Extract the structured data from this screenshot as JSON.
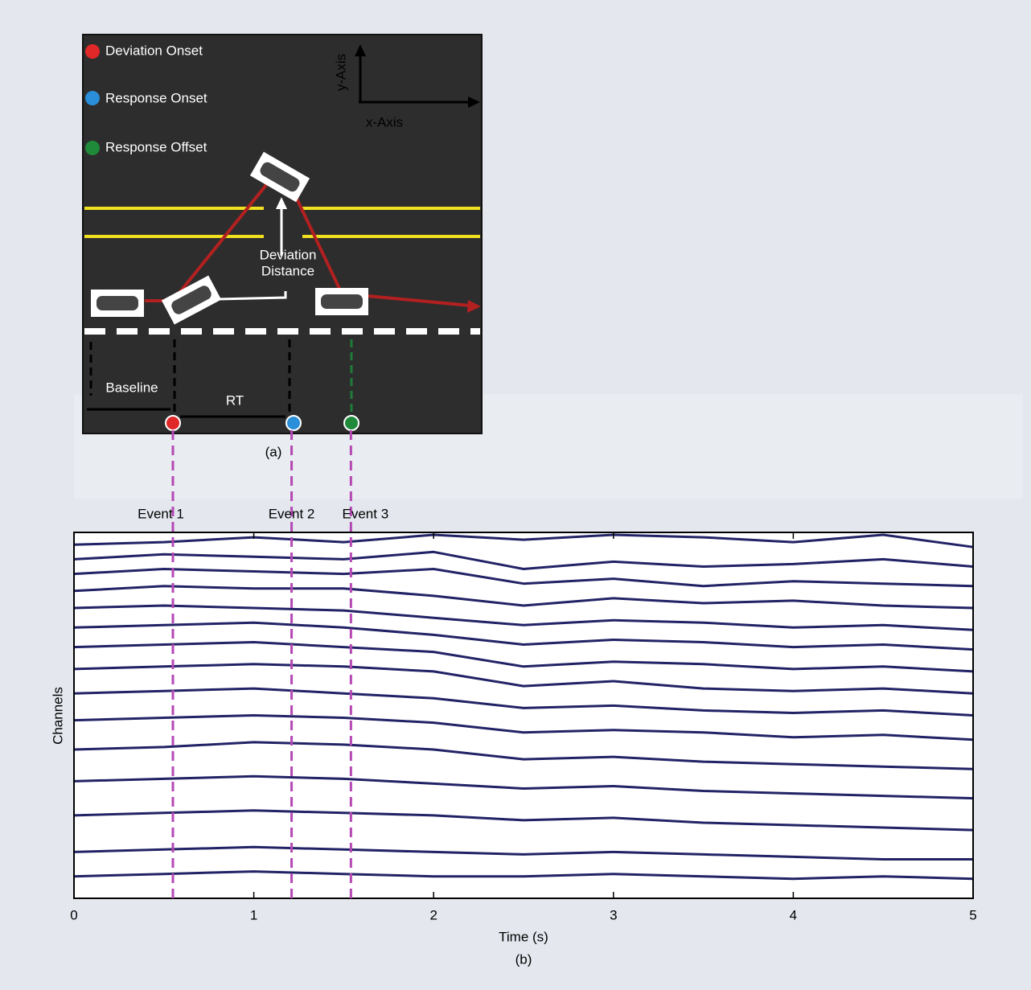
{
  "diagram": {
    "legend": [
      "Deviation Onset",
      "Response Onset",
      "Response Offset"
    ],
    "y_axis_label": "y-Axis",
    "x_axis_label": "x-Axis",
    "deviation_distance": [
      "Deviation",
      "Distance"
    ],
    "baseline": "Baseline",
    "rt": "RT",
    "caption": "(a)"
  },
  "chart_data": {
    "type": "line",
    "xlabel": "Time (s)",
    "ylabel": "Channels",
    "caption": "(b)",
    "xlim": [
      0,
      5
    ],
    "xticks": [
      0,
      1,
      2,
      3,
      4,
      5
    ],
    "ylim": [
      0,
      15
    ],
    "events": [
      {
        "label": "Event 1",
        "x": 0.55
      },
      {
        "label": "Event 2",
        "x": 1.21
      },
      {
        "label": "Event 3",
        "x": 1.54
      }
    ],
    "event_color": "#b548b5",
    "x": [
      0,
      0.5,
      1,
      1.5,
      2,
      2.5,
      3,
      3.5,
      4,
      4.5,
      5
    ],
    "series": [
      {
        "color": "#222266",
        "values": [
          14.5,
          14.6,
          14.8,
          14.6,
          14.9,
          14.7,
          14.9,
          14.8,
          14.6,
          14.9,
          14.4
        ]
      },
      {
        "color": "#222266",
        "values": [
          13.9,
          14.1,
          14.0,
          13.9,
          14.2,
          13.5,
          13.8,
          13.6,
          13.7,
          13.9,
          13.6
        ]
      },
      {
        "color": "#222266",
        "values": [
          13.3,
          13.5,
          13.4,
          13.3,
          13.5,
          12.9,
          13.1,
          12.8,
          13.0,
          12.9,
          12.8
        ]
      },
      {
        "color": "#222266",
        "values": [
          12.6,
          12.8,
          12.7,
          12.7,
          12.4,
          12.0,
          12.3,
          12.1,
          12.2,
          12.0,
          11.9
        ]
      },
      {
        "color": "#222266",
        "values": [
          11.9,
          12.0,
          11.9,
          11.8,
          11.5,
          11.2,
          11.4,
          11.3,
          11.1,
          11.2,
          11.0
        ]
      },
      {
        "color": "#222266",
        "values": [
          11.1,
          11.2,
          11.3,
          11.1,
          10.8,
          10.4,
          10.6,
          10.5,
          10.3,
          10.4,
          10.2
        ]
      },
      {
        "color": "#222266",
        "values": [
          10.3,
          10.4,
          10.5,
          10.3,
          10.1,
          9.5,
          9.7,
          9.6,
          9.4,
          9.5,
          9.3
        ]
      },
      {
        "color": "#222266",
        "values": [
          9.4,
          9.5,
          9.6,
          9.5,
          9.3,
          8.7,
          8.9,
          8.6,
          8.5,
          8.6,
          8.4
        ]
      },
      {
        "color": "#222266",
        "values": [
          8.4,
          8.5,
          8.6,
          8.4,
          8.2,
          7.8,
          7.9,
          7.7,
          7.6,
          7.7,
          7.5
        ]
      },
      {
        "color": "#222266",
        "values": [
          7.3,
          7.4,
          7.5,
          7.4,
          7.2,
          6.8,
          6.9,
          6.8,
          6.6,
          6.7,
          6.5
        ]
      },
      {
        "color": "#222266",
        "values": [
          6.1,
          6.2,
          6.4,
          6.3,
          6.1,
          5.7,
          5.8,
          5.6,
          5.5,
          5.4,
          5.3
        ]
      },
      {
        "color": "#222266",
        "values": [
          4.8,
          4.9,
          5.0,
          4.9,
          4.7,
          4.5,
          4.6,
          4.4,
          4.3,
          4.2,
          4.1
        ]
      },
      {
        "color": "#222266",
        "values": [
          3.4,
          3.5,
          3.6,
          3.5,
          3.4,
          3.2,
          3.3,
          3.1,
          3.0,
          2.9,
          2.8
        ]
      },
      {
        "color": "#222266",
        "values": [
          1.9,
          2.0,
          2.1,
          2.0,
          1.9,
          1.8,
          1.9,
          1.8,
          1.7,
          1.6,
          1.6
        ]
      },
      {
        "color": "#222266",
        "values": [
          0.9,
          1.0,
          1.1,
          1.0,
          0.9,
          0.9,
          1.0,
          0.9,
          0.8,
          0.9,
          0.8
        ]
      }
    ]
  }
}
